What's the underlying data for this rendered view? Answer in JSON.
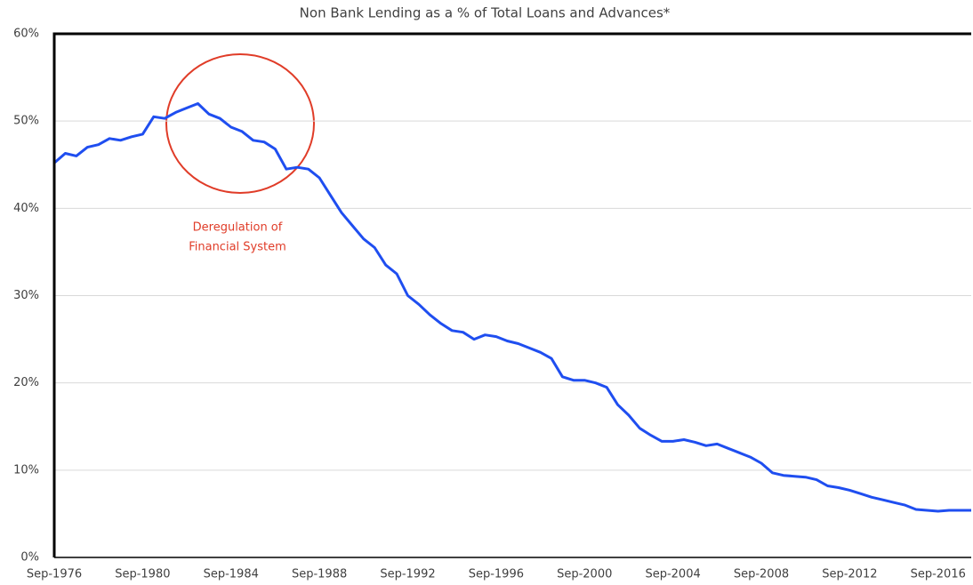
{
  "chart_data": {
    "type": "line",
    "title": "Non Bank Lending as a % of Total Loans and Advances*",
    "annotation": [
      "Deregulation of",
      "Financial System"
    ],
    "categories": [
      "Sep-1976",
      null,
      null,
      null,
      null,
      null,
      null,
      null,
      "Sep-1980",
      null,
      null,
      null,
      null,
      null,
      null,
      null,
      "Sep-1984",
      null,
      null,
      null,
      null,
      null,
      null,
      null,
      "Sep-1988",
      null,
      null,
      null,
      null,
      null,
      null,
      null,
      "Sep-1992",
      null,
      null,
      null,
      null,
      null,
      null,
      null,
      "Sep-1996",
      null,
      null,
      null,
      null,
      null,
      null,
      null,
      "Sep-2000",
      null,
      null,
      null,
      null,
      null,
      null,
      null,
      "Sep-2004",
      null,
      null,
      null,
      null,
      null,
      null,
      null,
      "Sep-2008",
      null,
      null,
      null,
      null,
      null,
      null,
      null,
      "Sep-2012",
      null,
      null,
      null,
      null,
      null,
      null,
      null,
      "Sep-2016",
      null,
      null,
      null
    ],
    "values": [
      45.2,
      46.3,
      46.0,
      47.0,
      47.3,
      48.0,
      47.8,
      48.2,
      48.5,
      50.5,
      50.3,
      51.0,
      51.5,
      52.0,
      50.8,
      50.3,
      49.3,
      48.8,
      47.8,
      47.6,
      46.8,
      44.5,
      44.7,
      44.5,
      43.5,
      41.5,
      39.5,
      38.0,
      36.5,
      35.5,
      33.5,
      32.5,
      30.0,
      29.0,
      27.8,
      26.8,
      26.0,
      25.8,
      25.0,
      25.5,
      25.3,
      24.8,
      24.5,
      24.0,
      23.5,
      22.8,
      20.7,
      20.3,
      20.3,
      20.0,
      19.5,
      17.5,
      16.3,
      14.8,
      14.0,
      13.3,
      13.3,
      13.5,
      13.2,
      12.8,
      13.0,
      12.5,
      12.0,
      11.5,
      10.8,
      9.7,
      9.4,
      9.3,
      9.2,
      8.9,
      8.2,
      8.0,
      7.7,
      7.3,
      6.9,
      6.6,
      6.3,
      6.0,
      5.5,
      5.4,
      5.3,
      5.4,
      5.4,
      5.4
    ],
    "color": "#1f4ef0",
    "ylim": [
      0,
      60
    ],
    "yticks": [
      {
        "value": 0,
        "label": "0%"
      },
      {
        "value": 10,
        "label": "10%"
      },
      {
        "value": 20,
        "label": "20%"
      },
      {
        "value": 30,
        "label": "30%"
      },
      {
        "value": 40,
        "label": "40%"
      },
      {
        "value": 50,
        "label": "50%"
      },
      {
        "value": 60,
        "label": "60%"
      }
    ],
    "grid": true
  }
}
